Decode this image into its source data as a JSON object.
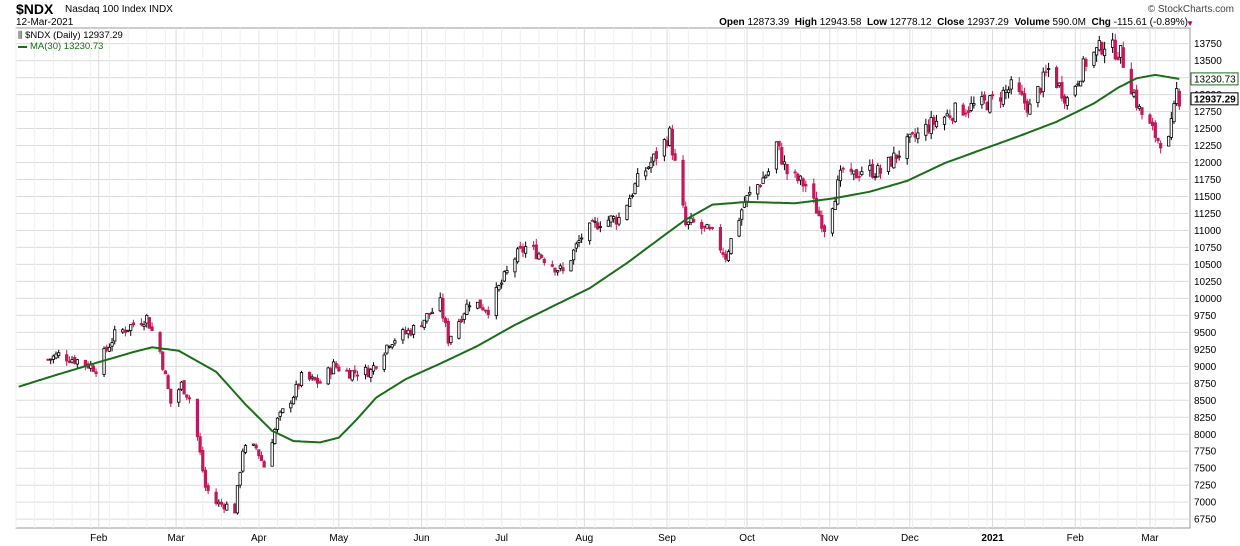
{
  "header": {
    "symbol": "$NDX",
    "name": "Nasdaq 100 Index",
    "exchange": "INDX",
    "date": "12-Mar-2021",
    "copyright": "© StockCharts.com"
  },
  "quote": {
    "open_label": "Open",
    "open": "12873.39",
    "high_label": "High",
    "high": "12943.58",
    "low_label": "Low",
    "low": "12778.12",
    "close_label": "Close",
    "close": "12937.29",
    "volume_label": "Volume",
    "volume": "590.0M",
    "chg_label": "Chg",
    "chg": "-115.61 (-0.89%)"
  },
  "legend": {
    "price_label": "$NDX (Daily) 12937.29",
    "ma_label": "MA(30) 13230.73"
  },
  "colors": {
    "up": "#000000",
    "down": "#c0185a",
    "ma": "#1a6e1a",
    "grid": "#dcdcdc",
    "axis": "#999999"
  },
  "chart_data": {
    "type": "candlestick",
    "x_labels": [
      "Feb",
      "Mar",
      "Apr",
      "May",
      "Jun",
      "Jul",
      "Aug",
      "Sep",
      "Oct",
      "Nov",
      "Dec",
      "2021",
      "Feb",
      "Mar"
    ],
    "y_ticks": [
      6750,
      7000,
      7250,
      7500,
      7750,
      8000,
      8250,
      8500,
      8750,
      9000,
      9250,
      9500,
      9750,
      10000,
      10250,
      10500,
      10750,
      11000,
      11250,
      11500,
      11750,
      12000,
      12250,
      12500,
      12750,
      13000,
      13250,
      13500,
      13750
    ],
    "ylim": [
      6620,
      13980
    ],
    "last_price_label": "12937.29",
    "last_ma_label": "13230.73",
    "series": [
      {
        "name": "$NDX (Daily)",
        "kind": "close",
        "points": [
          [
            "2020-01-13",
            9100
          ],
          [
            "2020-01-17",
            9170
          ],
          [
            "2020-01-24",
            9090
          ],
          [
            "2020-01-31",
            8970
          ],
          [
            "2020-02-07",
            9460
          ],
          [
            "2020-02-14",
            9620
          ],
          [
            "2020-02-19",
            9720
          ],
          [
            "2020-02-24",
            9220
          ],
          [
            "2020-02-28",
            8460
          ],
          [
            "2020-03-03",
            8730
          ],
          [
            "2020-03-06",
            8530
          ],
          [
            "2020-03-09",
            7960
          ],
          [
            "2020-03-12",
            7220
          ],
          [
            "2020-03-16",
            6990
          ],
          [
            "2020-03-20",
            6950
          ],
          [
            "2020-03-23",
            6880
          ],
          [
            "2020-03-26",
            7780
          ],
          [
            "2020-03-31",
            7800
          ],
          [
            "2020-04-03",
            7530
          ],
          [
            "2020-04-08",
            8200
          ],
          [
            "2020-04-14",
            8580
          ],
          [
            "2020-04-17",
            8830
          ],
          [
            "2020-04-24",
            8760
          ],
          [
            "2020-04-29",
            9010
          ],
          [
            "2020-05-05",
            8910
          ],
          [
            "2020-05-13",
            8930
          ],
          [
            "2020-05-20",
            9370
          ],
          [
            "2020-05-29",
            9550
          ],
          [
            "2020-06-08",
            9920
          ],
          [
            "2020-06-11",
            9400
          ],
          [
            "2020-06-19",
            9960
          ],
          [
            "2020-06-26",
            9850
          ],
          [
            "2020-07-06",
            10600
          ],
          [
            "2020-07-10",
            10750
          ],
          [
            "2020-07-15",
            10660
          ],
          [
            "2020-07-24",
            10380
          ],
          [
            "2020-07-31",
            10910
          ],
          [
            "2020-08-07",
            11140
          ],
          [
            "2020-08-14",
            11180
          ],
          [
            "2020-08-21",
            11730
          ],
          [
            "2020-08-28",
            12110
          ],
          [
            "2020-09-02",
            12420
          ],
          [
            "2020-09-08",
            11070
          ],
          [
            "2020-09-11",
            11100
          ],
          [
            "2020-09-18",
            10940
          ],
          [
            "2020-09-23",
            10630
          ],
          [
            "2020-09-30",
            11420
          ],
          [
            "2020-10-09",
            11870
          ],
          [
            "2020-10-12",
            12270
          ],
          [
            "2020-10-16",
            11850
          ],
          [
            "2020-10-23",
            11660
          ],
          [
            "2020-10-30",
            11050
          ],
          [
            "2020-11-06",
            11900
          ],
          [
            "2020-11-09",
            11760
          ],
          [
            "2020-11-13",
            11900
          ],
          [
            "2020-11-20",
            11860
          ],
          [
            "2020-11-30",
            12270
          ],
          [
            "2020-12-08",
            12540
          ],
          [
            "2020-12-18",
            12760
          ],
          [
            "2020-12-31",
            12890
          ],
          [
            "2021-01-08",
            13100
          ],
          [
            "2021-01-15",
            12800
          ],
          [
            "2021-01-22",
            13370
          ],
          [
            "2021-01-29",
            12930
          ],
          [
            "2021-02-05",
            13480
          ],
          [
            "2021-02-12",
            13750
          ],
          [
            "2021-02-18",
            13600
          ],
          [
            "2021-02-25",
            12770
          ],
          [
            "2021-03-04",
            12340
          ],
          [
            "2021-03-08",
            12300
          ],
          [
            "2021-03-10",
            12760
          ],
          [
            "2021-03-11",
            13050
          ],
          [
            "2021-03-12",
            12937.29
          ]
        ]
      },
      {
        "name": "MA(30)",
        "kind": "ma",
        "points": [
          [
            "2020-01-02",
            8700
          ],
          [
            "2020-01-15",
            8860
          ],
          [
            "2020-01-31",
            9050
          ],
          [
            "2020-02-14",
            9210
          ],
          [
            "2020-02-21",
            9280
          ],
          [
            "2020-03-02",
            9230
          ],
          [
            "2020-03-16",
            8920
          ],
          [
            "2020-03-27",
            8440
          ],
          [
            "2020-04-06",
            8050
          ],
          [
            "2020-04-14",
            7900
          ],
          [
            "2020-04-24",
            7880
          ],
          [
            "2020-05-01",
            7950
          ],
          [
            "2020-05-08",
            8230
          ],
          [
            "2020-05-15",
            8540
          ],
          [
            "2020-05-26",
            8810
          ],
          [
            "2020-06-08",
            9040
          ],
          [
            "2020-06-22",
            9300
          ],
          [
            "2020-07-06",
            9610
          ],
          [
            "2020-07-20",
            9880
          ],
          [
            "2020-08-03",
            10150
          ],
          [
            "2020-08-17",
            10520
          ],
          [
            "2020-08-31",
            10930
          ],
          [
            "2020-09-08",
            11160
          ],
          [
            "2020-09-18",
            11380
          ],
          [
            "2020-10-01",
            11420
          ],
          [
            "2020-10-19",
            11400
          ],
          [
            "2020-11-02",
            11470
          ],
          [
            "2020-11-16",
            11570
          ],
          [
            "2020-11-30",
            11730
          ],
          [
            "2020-12-14",
            11990
          ],
          [
            "2020-12-28",
            12190
          ],
          [
            "2021-01-11",
            12390
          ],
          [
            "2021-01-25",
            12600
          ],
          [
            "2021-02-08",
            12870
          ],
          [
            "2021-02-17",
            13100
          ],
          [
            "2021-02-24",
            13240
          ],
          [
            "2021-03-03",
            13290
          ],
          [
            "2021-03-12",
            13230.73
          ]
        ]
      }
    ]
  }
}
